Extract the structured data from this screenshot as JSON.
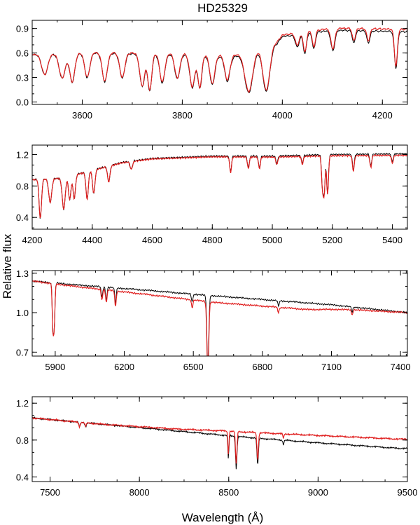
{
  "chart_data": {
    "type": "line",
    "title": "HD25329",
    "ylabel": "Relative flux",
    "xlabel": "Wavelength (Å)",
    "series_colors": {
      "observed": "#000000",
      "model": "#e02020"
    },
    "panels": [
      {
        "xlim": [
          3500,
          4250
        ],
        "ylim": [
          -0.03,
          1.0
        ],
        "xticks": [
          3600,
          3800,
          4000,
          4200
        ],
        "xtick_labels": [
          "3600",
          "3800",
          "4000",
          "4200"
        ],
        "yticks": [
          0.0,
          0.3,
          0.6,
          0.9
        ],
        "ytick_labels": [
          "0.0",
          "0.3",
          "0.6",
          "0.9"
        ],
        "continuum": [
          [
            3500,
            0.58
          ],
          [
            3620,
            0.6
          ],
          [
            3800,
            0.58
          ],
          [
            3900,
            0.55
          ],
          [
            3990,
            0.72
          ],
          [
            4000,
            0.8
          ],
          [
            4100,
            0.88
          ],
          [
            4250,
            0.86
          ]
        ],
        "lines": [
          {
            "w": 3525,
            "d": 0.25,
            "s": 6
          },
          {
            "w": 3560,
            "d": 0.3,
            "s": 6
          },
          {
            "w": 3580,
            "d": 0.35,
            "s": 5
          },
          {
            "w": 3610,
            "d": 0.3,
            "s": 5
          },
          {
            "w": 3645,
            "d": 0.35,
            "s": 5
          },
          {
            "w": 3680,
            "d": 0.3,
            "s": 5
          },
          {
            "w": 3720,
            "d": 0.4,
            "s": 5
          },
          {
            "w": 3735,
            "d": 0.45,
            "s": 4
          },
          {
            "w": 3760,
            "d": 0.35,
            "s": 5
          },
          {
            "w": 3790,
            "d": 0.3,
            "s": 5
          },
          {
            "w": 3820,
            "d": 0.4,
            "s": 5
          },
          {
            "w": 3835,
            "d": 0.4,
            "s": 4
          },
          {
            "w": 3860,
            "d": 0.35,
            "s": 5
          },
          {
            "w": 3890,
            "d": 0.3,
            "s": 5
          },
          {
            "w": 3933,
            "d": 0.5,
            "s": 8
          },
          {
            "w": 3968,
            "d": 0.55,
            "s": 7
          },
          {
            "w": 4030,
            "d": 0.15,
            "s": 4
          },
          {
            "w": 4045,
            "d": 0.25,
            "s": 3
          },
          {
            "w": 4063,
            "d": 0.2,
            "s": 3
          },
          {
            "w": 4101,
            "d": 0.25,
            "s": 4
          },
          {
            "w": 4143,
            "d": 0.15,
            "s": 3
          },
          {
            "w": 4172,
            "d": 0.15,
            "s": 3
          },
          {
            "w": 4227,
            "d": 0.45,
            "s": 3
          }
        ],
        "model_offset": [
          [
            3500,
            0.0
          ],
          [
            4250,
            0.03
          ]
        ]
      },
      {
        "xlim": [
          4200,
          5450
        ],
        "ylim": [
          0.25,
          1.32
        ],
        "xticks": [
          4200,
          4400,
          4600,
          4800,
          5000,
          5200,
          5400
        ],
        "xtick_labels": [
          "4200",
          "4400",
          "4600",
          "4800",
          "5000",
          "5200",
          "5400"
        ],
        "yticks": [
          0.4,
          0.8,
          1.2
        ],
        "ytick_labels": [
          "0.4",
          "0.8",
          "1.2"
        ],
        "continuum": [
          [
            4200,
            0.88
          ],
          [
            4300,
            0.9
          ],
          [
            4400,
            1.0
          ],
          [
            4500,
            1.1
          ],
          [
            4600,
            1.15
          ],
          [
            4800,
            1.18
          ],
          [
            5000,
            1.18
          ],
          [
            5200,
            1.2
          ],
          [
            5450,
            1.21
          ]
        ],
        "lines": [
          {
            "w": 4227,
            "d": 0.5,
            "s": 4
          },
          {
            "w": 4260,
            "d": 0.3,
            "s": 5
          },
          {
            "w": 4305,
            "d": 0.4,
            "s": 5
          },
          {
            "w": 4325,
            "d": 0.3,
            "s": 4
          },
          {
            "w": 4340,
            "d": 0.3,
            "s": 4
          },
          {
            "w": 4383,
            "d": 0.35,
            "s": 4
          },
          {
            "w": 4405,
            "d": 0.3,
            "s": 4
          },
          {
            "w": 4455,
            "d": 0.2,
            "s": 4
          },
          {
            "w": 4530,
            "d": 0.1,
            "s": 4
          },
          {
            "w": 4861,
            "d": 0.2,
            "s": 3
          },
          {
            "w": 4920,
            "d": 0.15,
            "s": 3
          },
          {
            "w": 4957,
            "d": 0.15,
            "s": 3
          },
          {
            "w": 5015,
            "d": 0.1,
            "s": 3
          },
          {
            "w": 5100,
            "d": 0.1,
            "s": 3
          },
          {
            "w": 5167,
            "d": 0.4,
            "s": 3
          },
          {
            "w": 5173,
            "d": 0.45,
            "s": 3
          },
          {
            "w": 5184,
            "d": 0.5,
            "s": 3
          },
          {
            "w": 5270,
            "d": 0.2,
            "s": 3
          },
          {
            "w": 5328,
            "d": 0.15,
            "s": 3
          },
          {
            "w": 5400,
            "d": 0.1,
            "s": 3
          }
        ],
        "model_offset": [
          [
            4200,
            0.0
          ],
          [
            5450,
            -0.02
          ]
        ]
      },
      {
        "xlim": [
          5800,
          7430
        ],
        "ylim": [
          0.67,
          1.32
        ],
        "xticks": [
          5900,
          6200,
          6500,
          6800,
          7100,
          7400
        ],
        "xtick_labels": [
          "5900",
          "6200",
          "6500",
          "6800",
          "7100",
          "7400"
        ],
        "yticks": [
          0.7,
          1.0,
          1.3
        ],
        "ytick_labels": [
          "0.7",
          "1.0",
          "1.3"
        ],
        "continuum": [
          [
            5800,
            1.24
          ],
          [
            6000,
            1.21
          ],
          [
            6300,
            1.17
          ],
          [
            6500,
            1.14
          ],
          [
            6800,
            1.1
          ],
          [
            7100,
            1.06
          ],
          [
            7430,
            1.0
          ]
        ],
        "lines": [
          {
            "w": 5890,
            "d": 0.35,
            "s": 3
          },
          {
            "w": 5896,
            "d": 0.3,
            "s": 3
          },
          {
            "w": 6103,
            "d": 0.08,
            "s": 3
          },
          {
            "w": 6122,
            "d": 0.1,
            "s": 3
          },
          {
            "w": 6162,
            "d": 0.12,
            "s": 3
          },
          {
            "w": 6495,
            "d": 0.06,
            "s": 3
          },
          {
            "w": 6563,
            "d": 0.55,
            "s": 4
          },
          {
            "w": 6870,
            "d": 0.04,
            "s": 3
          },
          {
            "w": 7190,
            "d": 0.04,
            "s": 3
          }
        ],
        "model_offset": [
          [
            5800,
            0.0
          ],
          [
            6100,
            -0.02
          ],
          [
            6600,
            -0.05
          ],
          [
            7000,
            -0.05
          ],
          [
            7200,
            -0.02
          ],
          [
            7430,
            0.0
          ]
        ]
      },
      {
        "xlim": [
          7400,
          9500
        ],
        "ylim": [
          0.35,
          1.27
        ],
        "xticks": [
          7500,
          8000,
          8500,
          9000,
          9500
        ],
        "xtick_labels": [
          "7500",
          "8000",
          "8500",
          "9000",
          "9500"
        ],
        "yticks": [
          0.4,
          0.8,
          1.2
        ],
        "ytick_labels": [
          "0.4",
          "0.8",
          "1.2"
        ],
        "continuum": [
          [
            7400,
            1.04
          ],
          [
            7800,
            0.97
          ],
          [
            8200,
            0.9
          ],
          [
            8600,
            0.83
          ],
          [
            9000,
            0.77
          ],
          [
            9450,
            0.71
          ]
        ],
        "lines": [
          {
            "w": 7665,
            "d": 0.05,
            "s": 4
          },
          {
            "w": 7699,
            "d": 0.04,
            "s": 4
          },
          {
            "w": 8498,
            "d": 0.25,
            "s": 3
          },
          {
            "w": 8542,
            "d": 0.35,
            "s": 4
          },
          {
            "w": 8662,
            "d": 0.3,
            "s": 4
          },
          {
            "w": 8806,
            "d": 0.05,
            "s": 3
          }
        ],
        "model_offset": [
          [
            7400,
            0.0
          ],
          [
            7800,
            0.0
          ],
          [
            8200,
            0.02
          ],
          [
            8500,
            0.05
          ],
          [
            9000,
            0.08
          ],
          [
            9440,
            0.1
          ]
        ]
      }
    ]
  }
}
